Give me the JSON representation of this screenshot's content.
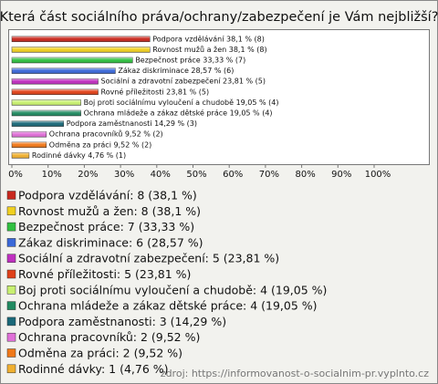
{
  "chart_data": {
    "type": "bar",
    "title": "Která část sociálního práva/ochrany/zabezpečení je Vám nejbližší?",
    "categories": [
      "Podpora vzdělávání",
      "Rovnost mužů a žen",
      "Bezpečnost práce",
      "Zákaz diskriminace",
      "Sociální a zdravotní zabezpečení",
      "Rovné příležitosti",
      "Boj proti sociálnímu vyloučení a chudobě",
      "Ochrana mládeže a zákaz dětské práce",
      "Podpora zaměstnanosti",
      "Ochrana pracovníků",
      "Odměna za práci",
      "Rodinné dávky"
    ],
    "values": [
      38.1,
      38.1,
      33.33,
      28.57,
      23.81,
      23.81,
      19.05,
      19.05,
      14.29,
      9.52,
      9.52,
      4.76
    ],
    "value_labels": [
      "Podpora vzdělávání 38,1 % (8)",
      "Rovnost mužů a žen 38,1 % (8)",
      "Bezpečnost práce 33,33 % (7)",
      "Zákaz diskriminace 28,57 % (6)",
      "Sociální a zdravotní zabezpečení 23,81 % (5)",
      "Rovné příležitosti 23,81 % (5)",
      "Boj proti sociálnímu vyloučení a chudobě 19,05 % (4)",
      "Ochrana mládeže a zákaz dětské práce 19,05 % (4)",
      "Podpora zaměstnanosti 14,29 % (3)",
      "Ochrana pracovníků 9,52 % (2)",
      "Odměna za práci 9,52 % (2)",
      "Rodinné dávky 4,76 % (1)"
    ],
    "legend_labels": [
      "Podpora vzdělávání: 8 (38,1 %)",
      "Rovnost mužů a žen: 8 (38,1 %)",
      "Bezpečnost práce: 7 (33,33 %)",
      "Zákaz diskriminace: 6 (28,57 %)",
      "Sociální a zdravotní zabezpečení: 5 (23,81 %)",
      "Rovné příležitosti: 5 (23,81 %)",
      "Boj proti sociálnímu vyloučení a chudobě: 4 (19,05 %)",
      "Ochrana mládeže a zákaz dětské práce: 4 (19,05 %)",
      "Podpora zaměstnanosti: 3 (14,29 %)",
      "Ochrana pracovníků: 2 (9,52 %)",
      "Odměna za práci: 2 (9,52 %)",
      "Rodinné dávky: 1 (4,76 %)"
    ],
    "colors": [
      "#c8281e",
      "#f0d020",
      "#30c040",
      "#3a68d8",
      "#c030c0",
      "#e04018",
      "#c8f070",
      "#208a60",
      "#1a6878",
      "#e070d8",
      "#f07818",
      "#f0b030"
    ],
    "xlim": [
      0,
      100
    ],
    "xticks": [
      {
        "value": 0,
        "label": "0%"
      },
      {
        "value": 10,
        "label": "10%"
      },
      {
        "value": 20,
        "label": "20%"
      },
      {
        "value": 30,
        "label": "30%"
      },
      {
        "value": 40,
        "label": "40%"
      },
      {
        "value": 50,
        "label": "50%"
      },
      {
        "value": 60,
        "label": "60%"
      },
      {
        "value": 70,
        "label": "70%"
      },
      {
        "value": 80,
        "label": "80%"
      },
      {
        "value": 90,
        "label": "90%"
      },
      {
        "value": 100,
        "label": "100%"
      }
    ],
    "source": "zdroj: https://informovanost-o-socialnim-pr.vyplnto.cz"
  }
}
